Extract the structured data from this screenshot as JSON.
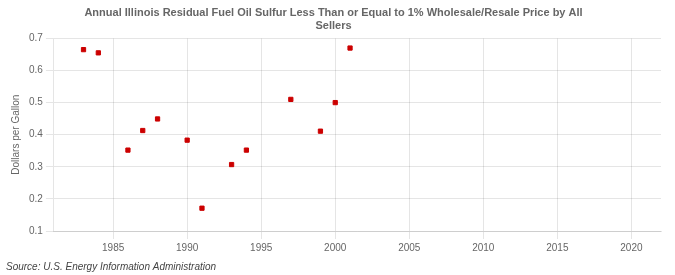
{
  "chart_data": {
    "type": "scatter",
    "title": "Annual Illinois Residual Fuel Oil Sulfur Less Than or Equal to 1% Wholesale/Resale Price by All\nSellers",
    "ylabel": "Dollars per Gallon",
    "source": "Source: U.S. Energy Information Administration",
    "x": [
      1983,
      1984,
      1986,
      1987,
      1988,
      1990,
      1991,
      1993,
      1994,
      1997,
      1999,
      2000,
      2001
    ],
    "values": [
      0.665,
      0.655,
      0.352,
      0.413,
      0.449,
      0.383,
      0.171,
      0.307,
      0.352,
      0.51,
      0.411,
      0.5,
      0.67
    ],
    "color": "#cc0000",
    "marker": "square",
    "xlim": [
      1981,
      2022
    ],
    "ylim": [
      0.1,
      0.7
    ],
    "xticks": [
      1985,
      1990,
      1995,
      2000,
      2005,
      2010,
      2015,
      2020
    ],
    "yticks": [
      0.1,
      0.2,
      0.3,
      0.4,
      0.5,
      0.6,
      0.7
    ],
    "grid": true
  }
}
